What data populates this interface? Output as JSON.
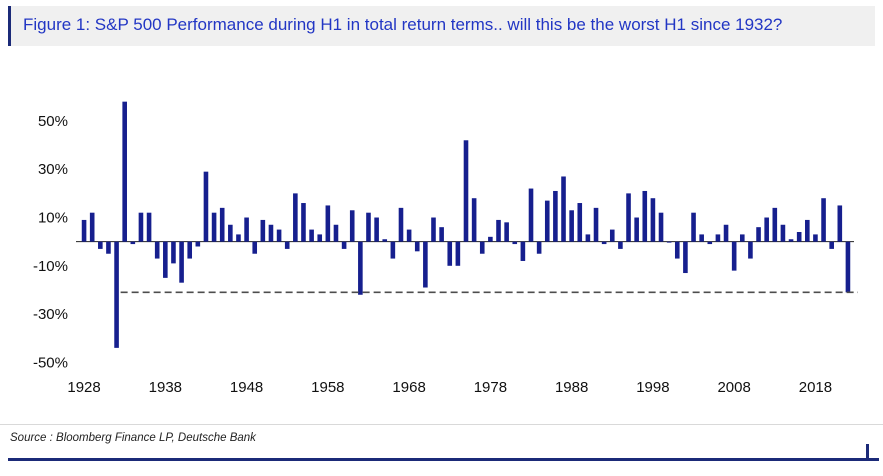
{
  "figure": {
    "title": "Figure 1: S&P 500 Performance during H1 in total return terms.. will this be the worst H1 since 1932?",
    "source": "Source : Bloomberg Finance LP, Deutsche Bank"
  },
  "colors": {
    "bar": "#161f8e",
    "title_text": "#2236c4",
    "accent_rule": "#1b2a78",
    "dashed_line": "#4d4d4d",
    "title_bg": "#f0f0f0",
    "axis_text": "#111111"
  },
  "chart_data": {
    "type": "bar",
    "title": "S&P 500 H1 total return by year, 1928-2022",
    "xlabel": "",
    "ylabel": "",
    "ylim": [
      -54,
      62
    ],
    "grid": false,
    "legend": false,
    "yticks": [
      {
        "value": 50,
        "label": "50%"
      },
      {
        "value": 30,
        "label": "30%"
      },
      {
        "value": 10,
        "label": "10%"
      },
      {
        "value": -10,
        "label": "-10%"
      },
      {
        "value": -30,
        "label": "-30%"
      },
      {
        "value": -50,
        "label": "-50%"
      }
    ],
    "xticks": [
      1928,
      1938,
      1948,
      1958,
      1968,
      1978,
      1988,
      1998,
      2008,
      2018
    ],
    "dashed_line": {
      "value": -21,
      "start_year": 1933
    },
    "years": [
      1928,
      1929,
      1930,
      1931,
      1932,
      1933,
      1934,
      1935,
      1936,
      1937,
      1938,
      1939,
      1940,
      1941,
      1942,
      1943,
      1944,
      1945,
      1946,
      1947,
      1948,
      1949,
      1950,
      1951,
      1952,
      1953,
      1954,
      1955,
      1956,
      1957,
      1958,
      1959,
      1960,
      1961,
      1962,
      1963,
      1964,
      1965,
      1966,
      1967,
      1968,
      1969,
      1970,
      1971,
      1972,
      1973,
      1974,
      1975,
      1976,
      1977,
      1978,
      1979,
      1980,
      1981,
      1982,
      1983,
      1984,
      1985,
      1986,
      1987,
      1988,
      1989,
      1990,
      1991,
      1992,
      1993,
      1994,
      1995,
      1996,
      1997,
      1998,
      1999,
      2000,
      2001,
      2002,
      2003,
      2004,
      2005,
      2006,
      2007,
      2008,
      2009,
      2010,
      2011,
      2012,
      2013,
      2014,
      2015,
      2016,
      2017,
      2018,
      2019,
      2020,
      2021,
      2022
    ],
    "values": [
      9,
      12,
      -3,
      -5,
      -44,
      58,
      -1,
      12,
      12,
      -7,
      -15,
      -9,
      -17,
      -7,
      -2,
      29,
      12,
      14,
      7,
      3,
      10,
      -5,
      9,
      7,
      5,
      -3,
      20,
      16,
      5,
      3,
      15,
      7,
      -3,
      13,
      -22,
      12,
      10,
      1,
      -7,
      14,
      5,
      -4,
      -19,
      10,
      6,
      -10,
      -10,
      42,
      18,
      -5,
      2,
      9,
      8,
      -1,
      -8,
      22,
      -5,
      17,
      21,
      27,
      13,
      16,
      3,
      14,
      -1,
      5,
      -3,
      20,
      10,
      21,
      18,
      12,
      -0.4,
      -7,
      -13,
      12,
      3,
      -1,
      3,
      7,
      -12,
      3,
      -7,
      6,
      10,
      14,
      7,
      1,
      4,
      9,
      3,
      18,
      -3,
      15,
      -21
    ]
  }
}
